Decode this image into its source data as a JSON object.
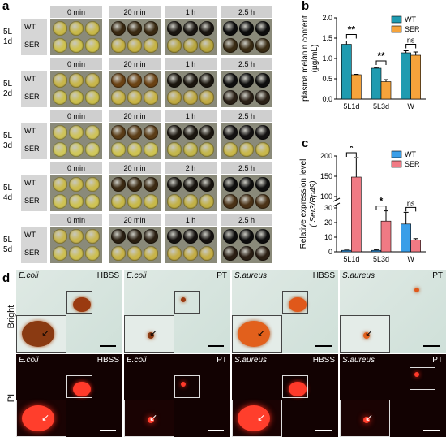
{
  "panel_a": {
    "label": "a",
    "rows": [
      {
        "label": "5L\n1d",
        "times": [
          "0 min",
          "20 min",
          "1 h",
          "2.5 h"
        ]
      },
      {
        "label": "5L\n2d",
        "times": [
          "0 min",
          "20 min",
          "1 h",
          "2.5 h"
        ]
      },
      {
        "label": "5L\n3d",
        "times": [
          "0 min",
          "20 min",
          "1 h",
          "2.5 h"
        ]
      },
      {
        "label": "5L\n4d",
        "times": [
          "0 min",
          "20 min",
          "2 h",
          "2.5 h"
        ]
      },
      {
        "label": "5L\n5d",
        "times": [
          "0 min",
          "20 min",
          "1 h",
          "2.5 h"
        ]
      }
    ],
    "wt_label": "WT",
    "ser_label": "SER"
  },
  "panel_b": {
    "label": "b",
    "chart_data": {
      "type": "bar",
      "categories": [
        "5L1d",
        "5L3d",
        "W"
      ],
      "series": [
        {
          "name": "WT",
          "values": [
            1.35,
            0.76,
            1.14
          ],
          "errors": [
            0.08,
            0.02,
            0.05
          ],
          "color": "#1f9bb0"
        },
        {
          "name": "SER",
          "values": [
            0.6,
            0.43,
            1.08
          ],
          "errors": [
            0.01,
            0.05,
            0.08
          ],
          "color": "#f5a33b"
        }
      ],
      "ylabel": "plasma melanin content\n(µg/mL)",
      "ylim": [
        0,
        2.0
      ],
      "yticks": [
        "0.0",
        "0.5",
        "1.0",
        "1.5",
        "2.0"
      ],
      "significance": [
        "**",
        "**",
        "ns"
      ]
    }
  },
  "panel_c": {
    "label": "c",
    "chart_data": {
      "type": "bar",
      "categories": [
        "5L1d",
        "5L3d",
        "W"
      ],
      "series": [
        {
          "name": "WT",
          "values": [
            1,
            1,
            19
          ],
          "errors": [
            0.2,
            0.5,
            8
          ],
          "color": "#3a9ee8"
        },
        {
          "name": "SER",
          "values": [
            148,
            21,
            8
          ],
          "errors": [
            48,
            7,
            1
          ],
          "color": "#f07a84"
        }
      ],
      "ylabel": "Relative expression level",
      "ylabel2": "( Ser3/Rp49)",
      "yticks_low": [
        "0",
        "10",
        "20",
        "30"
      ],
      "yticks_high": [
        "100",
        "150",
        "200"
      ],
      "significance": [
        "*",
        "*",
        "ns"
      ]
    }
  },
  "panel_d": {
    "label": "d",
    "bright_label": "Bright",
    "pi_label": "PI",
    "columns": [
      {
        "organism": "E.coli",
        "treatment": "HBSS"
      },
      {
        "organism": "E.coli",
        "treatment": "PT"
      },
      {
        "organism": "S.aureus",
        "treatment": "HBSS"
      },
      {
        "organism": "S.aureus",
        "treatment": "PT"
      }
    ]
  }
}
